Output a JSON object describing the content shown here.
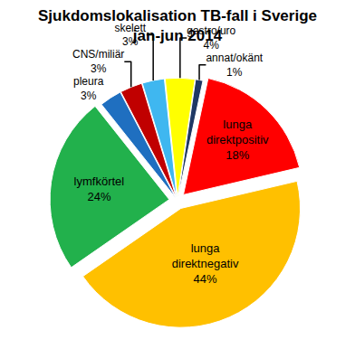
{
  "chart_data": {
    "type": "pie",
    "title": "Sjukdomslokalisation TB-fall i Sverige",
    "subtitle": "jan-jun 2014",
    "categories": [
      "lunga direktpositiv",
      "lunga direktnegativ",
      "lymfkörtel",
      "pleura",
      "CNS/miliär",
      "skelett",
      "gastro/uro",
      "annat/okänt"
    ],
    "values": [
      18,
      44,
      24,
      3,
      3,
      3,
      4,
      1
    ],
    "value_labels": [
      "18%",
      "44%",
      "24%",
      "3%",
      "3%",
      "3%",
      "4%",
      "1%"
    ],
    "colors": [
      "#ff0000",
      "#ffc000",
      "#22b14c",
      "#1f6fc0",
      "#c00000",
      "#3fb7f0",
      "#ffff00",
      "#1f3864"
    ],
    "data_labels": true
  }
}
